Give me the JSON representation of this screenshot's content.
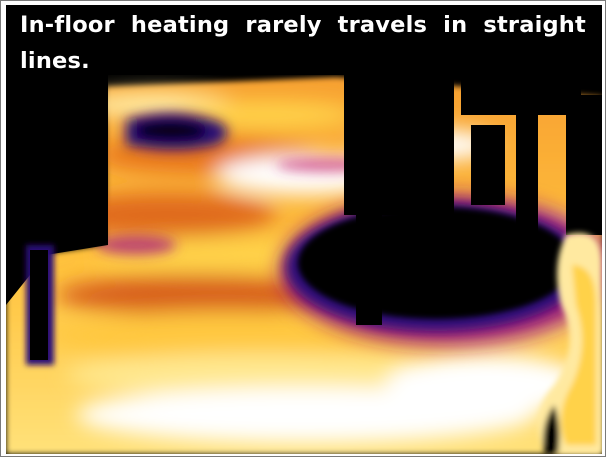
{
  "caption": {
    "text": "In-floor heating rarely travels in straight lines."
  },
  "thermal_palette": {
    "hot": "#ffffff",
    "warm": "#ffd24a",
    "mid": "#f08a1e",
    "cool": "#a01e78",
    "cold": "#2a1078",
    "background": "#000000"
  }
}
